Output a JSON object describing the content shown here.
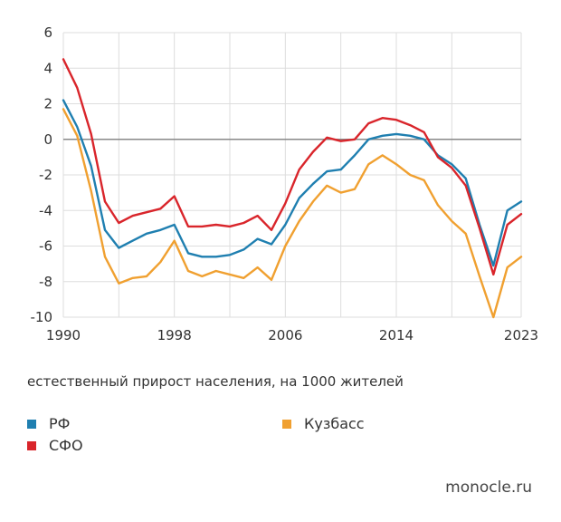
{
  "chart_data": {
    "type": "line",
    "x": [
      1990,
      1991,
      1992,
      1993,
      1994,
      1995,
      1996,
      1997,
      1998,
      1999,
      2000,
      2001,
      2002,
      2003,
      2004,
      2005,
      2006,
      2007,
      2008,
      2009,
      2010,
      2011,
      2012,
      2013,
      2014,
      2015,
      2016,
      2017,
      2018,
      2019,
      2020,
      2021,
      2022,
      2023
    ],
    "series": [
      {
        "name": "РФ",
        "color": "#1f7fb0",
        "values": [
          2.2,
          0.7,
          -1.5,
          -5.1,
          -6.1,
          -5.7,
          -5.3,
          -5.1,
          -4.8,
          -6.4,
          -6.6,
          -6.6,
          -6.5,
          -6.2,
          -5.6,
          -5.9,
          -4.8,
          -3.3,
          -2.5,
          -1.8,
          -1.7,
          -0.9,
          0.0,
          0.2,
          0.3,
          0.2,
          0.0,
          -0.9,
          -1.4,
          -2.2,
          -4.8,
          -7.1,
          -4.0,
          -3.5
        ]
      },
      {
        "name": "СФО",
        "color": "#d9252b",
        "values": [
          4.5,
          2.9,
          0.3,
          -3.5,
          -4.7,
          -4.3,
          -4.1,
          -3.9,
          -3.2,
          -4.9,
          -4.9,
          -4.8,
          -4.9,
          -4.7,
          -4.3,
          -5.1,
          -3.6,
          -1.7,
          -0.7,
          0.1,
          -0.1,
          0.0,
          0.9,
          1.2,
          1.1,
          0.8,
          0.4,
          -1.0,
          -1.6,
          -2.6,
          -5.0,
          -7.6,
          -4.8,
          -4.2
        ]
      },
      {
        "name": "Кузбасс",
        "color": "#f0a030",
        "values": [
          1.7,
          0.2,
          -2.9,
          -6.6,
          -8.1,
          -7.8,
          -7.7,
          -6.9,
          -5.7,
          -7.4,
          -7.7,
          -7.4,
          -7.6,
          -7.8,
          -7.2,
          -7.9,
          -6.0,
          -4.6,
          -3.5,
          -2.6,
          -3.0,
          -2.8,
          -1.4,
          -0.9,
          -1.4,
          -2.0,
          -2.3,
          -3.7,
          -4.6,
          -5.3,
          -7.7,
          -10.0,
          -7.2,
          -6.6
        ]
      }
    ],
    "xticks": [
      "1990",
      "1998",
      "2006",
      "2014",
      "2023"
    ],
    "yticks": [
      "6",
      "4",
      "2",
      "0",
      "-2",
      "-4",
      "-6",
      "-8",
      "-10"
    ],
    "xlim": [
      1990,
      2023
    ],
    "ylim": [
      -10,
      6
    ],
    "grid": true,
    "legend": "bottom",
    "xlabel": "естественный прирост населения, на 1000 жителей"
  },
  "source": "monocle.ru"
}
